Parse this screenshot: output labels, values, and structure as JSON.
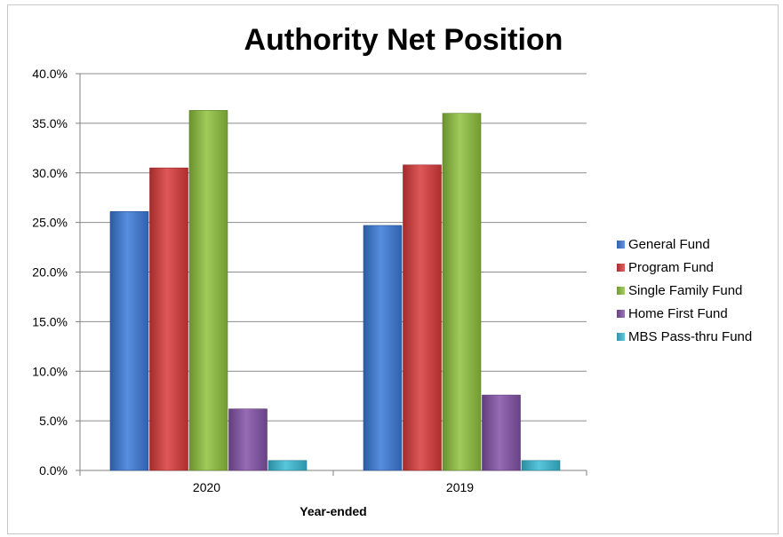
{
  "chart_data": {
    "type": "bar",
    "title": "Authority Net Position",
    "xlabel": "Year-ended",
    "ylabel": "",
    "categories": [
      "2020",
      "2019"
    ],
    "ylim": [
      0,
      40
    ],
    "yticks": [
      "0.0%",
      "5.0%",
      "10.0%",
      "15.0%",
      "20.0%",
      "25.0%",
      "30.0%",
      "35.0%",
      "40.0%"
    ],
    "grid": true,
    "legend_position": "right",
    "series": [
      {
        "name": "General Fund",
        "values": [
          26.1,
          24.7
        ],
        "color": "#3b7ad9"
      },
      {
        "name": "Program Fund",
        "values": [
          30.5,
          30.8
        ],
        "color": "#d93a3a"
      },
      {
        "name": "Single Family Fund",
        "values": [
          36.3,
          36.0
        ],
        "color": "#8fc23d"
      },
      {
        "name": "Home First Fund",
        "values": [
          6.2,
          7.6
        ],
        "color": "#8352a8"
      },
      {
        "name": "MBS Pass-thru Fund",
        "values": [
          1.0,
          1.0
        ],
        "color": "#3bbcd6"
      }
    ]
  }
}
